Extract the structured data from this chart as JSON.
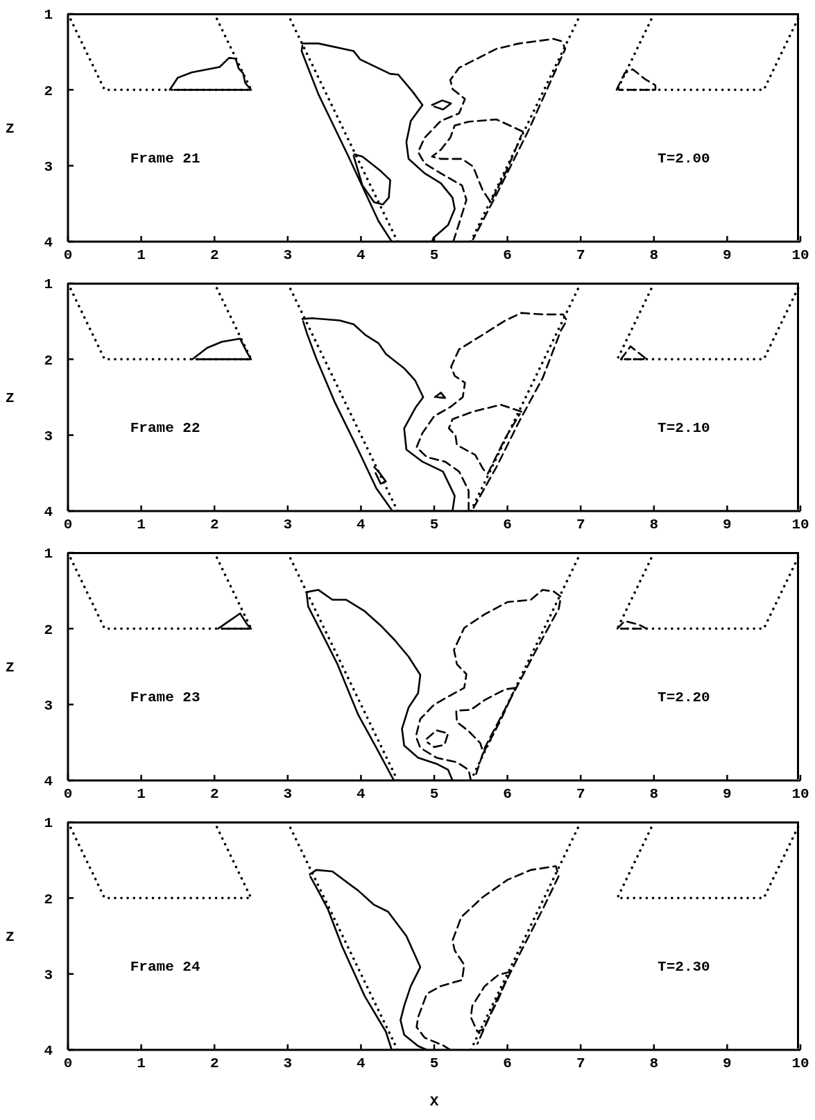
{
  "chart_data": [
    {
      "type": "line",
      "xlim": [
        0,
        10
      ],
      "xticks": [
        0,
        1,
        2,
        3,
        4,
        5,
        6,
        7,
        8,
        9,
        10
      ],
      "ylim": [
        4,
        1
      ],
      "yticks": [
        1,
        2,
        3,
        4
      ],
      "ylabel": "Z",
      "annotations": [
        "Frame 21",
        "T=2.00"
      ],
      "series": [
        {
          "color": "#000000",
          "line_style": "dotted",
          "x": [
            0,
            0.5,
            2.5,
            2
          ],
          "values": [
            1,
            2,
            2,
            1
          ]
        },
        {
          "color": "#000000",
          "line_style": "dotted",
          "x": [
            3,
            4.5
          ],
          "values": [
            1,
            4
          ]
        },
        {
          "color": "#000000",
          "line_style": "dotted",
          "x": [
            7,
            5.5
          ],
          "values": [
            1,
            4
          ]
        },
        {
          "color": "#000000",
          "line_style": "dotted",
          "x": [
            8,
            7.5,
            9.5,
            10
          ],
          "values": [
            1,
            2,
            2,
            1
          ]
        },
        {
          "color": "#000000",
          "line_style": "dashed",
          "x": [
            5.26,
            5.34,
            5.44,
            5.38,
            5.09,
            4.87,
            4.78,
            4.87,
            5.09,
            5.34,
            5.42,
            5.25,
            5.22,
            5.34,
            5.85,
            6.16,
            6.63,
            6.74,
            6.79,
            6.29,
            5.85,
            5.53
          ],
          "values": [
            4,
            3.76,
            3.45,
            3.26,
            3.1,
            2.97,
            2.82,
            2.63,
            2.41,
            2.31,
            2.12,
            1.99,
            1.87,
            1.71,
            1.46,
            1.39,
            1.33,
            1.36,
            1.46,
            2.53,
            3.38,
            3.97
          ]
        },
        {
          "color": "#000000",
          "line_style": "dashed",
          "x": [
            6.21,
            5.85,
            5.47,
            5.28,
            5.22,
            5.09,
            4.97,
            5.09,
            5.38,
            5.53,
            5.66,
            5.77,
            6.0,
            6.19
          ],
          "values": [
            2.55,
            2.39,
            2.42,
            2.47,
            2.63,
            2.79,
            2.88,
            2.91,
            2.91,
            3.01,
            3.32,
            3.48,
            3.04,
            2.6
          ]
        },
        {
          "color": "#000000",
          "line_style": "dashed",
          "x": [
            7.49,
            7.6,
            7.71,
            7.88,
            8.02,
            8.02,
            7.9,
            7.6,
            7.52
          ],
          "values": [
            2,
            1.78,
            1.73,
            1.86,
            1.94,
            2,
            2,
            2,
            2
          ]
        },
        {
          "color": "#000000",
          "line_style": "solid",
          "x": [
            1.39,
            1.5,
            1.69,
            2.07,
            2.2,
            2.29,
            2.33,
            2.39,
            2.42,
            2.5,
            2.3,
            1.8,
            1.45
          ],
          "values": [
            2,
            1.84,
            1.77,
            1.7,
            1.58,
            1.59,
            1.72,
            1.78,
            1.91,
            2,
            2,
            2,
            2
          ]
        },
        {
          "color": "#000000",
          "line_style": "solid",
          "x": [
            3.2,
            3.42,
            3.9,
            3.99,
            4.4,
            4.51,
            4.71,
            4.84,
            4.68,
            4.62,
            4.65,
            4.87,
            5.09,
            5.25,
            5.28,
            5.19,
            4.99,
            4.97,
            4.42,
            4.24,
            3.83,
            3.64,
            3.42,
            3.27,
            3.19,
            3.2
          ],
          "values": [
            1.39,
            1.39,
            1.49,
            1.6,
            1.79,
            1.8,
            2.03,
            2.2,
            2.41,
            2.69,
            2.91,
            3.1,
            3.23,
            3.42,
            3.57,
            3.78,
            3.95,
            4,
            4,
            3.73,
            2.88,
            2.5,
            2.06,
            1.69,
            1.49,
            1.42
          ]
        },
        {
          "color": "#000000",
          "line_style": "solid",
          "x": [
            3.91,
            4.02,
            4.27,
            4.4,
            4.38,
            4.3,
            4.18,
            4.02,
            3.9
          ],
          "values": [
            2.85,
            2.88,
            3.07,
            3.19,
            3.42,
            3.51,
            3.48,
            3.26,
            2.87
          ]
        },
        {
          "color": "#000000",
          "line_style": "solid",
          "x": [
            4.97,
            5.11,
            5.23,
            5.12,
            5.0
          ],
          "values": [
            2.2,
            2.14,
            2.18,
            2.26,
            2.22
          ]
        }
      ]
    },
    {
      "type": "line",
      "xlim": [
        0,
        10
      ],
      "xticks": [
        0,
        1,
        2,
        3,
        4,
        5,
        6,
        7,
        8,
        9,
        10
      ],
      "ylim": [
        4,
        1
      ],
      "yticks": [
        1,
        2,
        3,
        4
      ],
      "ylabel": "Z",
      "annotations": [
        "Frame 22",
        "T=2.10"
      ],
      "series": [
        {
          "color": "#000000",
          "line_style": "dotted",
          "x": [
            0,
            0.5,
            2.5,
            2
          ],
          "values": [
            1,
            2,
            2,
            1
          ]
        },
        {
          "color": "#000000",
          "line_style": "dotted",
          "x": [
            3,
            4.5
          ],
          "values": [
            1,
            4
          ]
        },
        {
          "color": "#000000",
          "line_style": "dotted",
          "x": [
            7,
            5.5
          ],
          "values": [
            1,
            4
          ]
        },
        {
          "color": "#000000",
          "line_style": "dotted",
          "x": [
            8,
            7.5,
            9.5,
            10
          ],
          "values": [
            1,
            2,
            2,
            1
          ]
        },
        {
          "color": "#000000",
          "line_style": "dashed",
          "x": [
            5.47,
            5.47,
            5.34,
            5.15,
            4.9,
            4.76,
            4.84,
            5.0,
            5.22,
            5.39,
            5.42,
            5.28,
            5.23,
            5.34,
            5.66,
            5.97,
            6.19,
            6.48,
            6.76,
            6.81,
            6.73,
            6.48,
            6.16,
            5.85,
            5.53
          ],
          "values": [
            4,
            3.73,
            3.48,
            3.35,
            3.29,
            3.16,
            2.97,
            2.75,
            2.63,
            2.5,
            2.31,
            2.22,
            2.1,
            1.87,
            1.68,
            1.49,
            1.39,
            1.41,
            1.41,
            1.49,
            1.62,
            2.25,
            2.82,
            3.42,
            3.97
          ]
        },
        {
          "color": "#000000",
          "line_style": "dashed",
          "x": [
            6.19,
            5.91,
            5.53,
            5.25,
            5.2,
            5.29,
            5.31,
            5.56,
            5.67,
            5.73,
            5.97,
            6.17
          ],
          "values": [
            2.69,
            2.6,
            2.69,
            2.79,
            2.91,
            3.0,
            3.13,
            3.26,
            3.45,
            3.51,
            3.04,
            2.72
          ]
        },
        {
          "color": "#000000",
          "line_style": "dashed",
          "x": [
            7.55,
            7.68,
            7.9,
            7.6
          ],
          "values": [
            2,
            1.83,
            2,
            2
          ]
        },
        {
          "color": "#000000",
          "line_style": "solid",
          "x": [
            1.7,
            1.9,
            2.1,
            2.35,
            2.45,
            2.5,
            1.75
          ],
          "values": [
            2,
            1.85,
            1.77,
            1.73,
            1.92,
            2,
            2
          ]
        },
        {
          "color": "#000000",
          "line_style": "solid",
          "x": [
            3.2,
            3.33,
            3.71,
            3.9,
            4.06,
            4.24,
            4.34,
            4.59,
            4.74,
            4.85,
            4.75,
            4.59,
            4.62,
            4.84,
            5.12,
            5.28,
            5.25,
            4.43,
            4.21,
            3.96,
            3.64,
            3.39,
            3.27,
            3.21
          ],
          "values": [
            1.47,
            1.46,
            1.49,
            1.54,
            1.68,
            1.79,
            1.93,
            2.12,
            2.28,
            2.5,
            2.63,
            2.91,
            3.19,
            3.35,
            3.48,
            3.8,
            4,
            4,
            3.7,
            3.19,
            2.56,
            1.99,
            1.68,
            1.5
          ]
        },
        {
          "color": "#000000",
          "line_style": "solid",
          "x": [
            4.18,
            4.24,
            4.34,
            4.27,
            4.2
          ],
          "values": [
            3.42,
            3.48,
            3.61,
            3.64,
            3.5
          ]
        },
        {
          "color": "#000000",
          "line_style": "solid",
          "x": [
            5.01,
            5.09,
            5.15,
            5.04
          ],
          "values": [
            2.5,
            2.44,
            2.51,
            2.5
          ]
        }
      ]
    },
    {
      "type": "line",
      "xlim": [
        0,
        10
      ],
      "xticks": [
        0,
        1,
        2,
        3,
        4,
        5,
        6,
        7,
        8,
        9,
        10
      ],
      "ylim": [
        4,
        1
      ],
      "yticks": [
        1,
        2,
        3,
        4
      ],
      "ylabel": "Z",
      "annotations": [
        "Frame 23",
        "T=2.20"
      ],
      "series": [
        {
          "color": "#000000",
          "line_style": "dotted",
          "x": [
            0,
            0.5,
            2.5,
            2
          ],
          "values": [
            1,
            2,
            2,
            1
          ]
        },
        {
          "color": "#000000",
          "line_style": "dotted",
          "x": [
            3,
            4.5
          ],
          "values": [
            1,
            4
          ]
        },
        {
          "color": "#000000",
          "line_style": "dotted",
          "x": [
            7,
            5.5
          ],
          "values": [
            1,
            4
          ]
        },
        {
          "color": "#000000",
          "line_style": "dotted",
          "x": [
            8,
            7.5,
            9.5,
            10
          ],
          "values": [
            1,
            2,
            2,
            1
          ]
        },
        {
          "color": "#000000",
          "line_style": "dashed",
          "x": [
            4.9,
            5.03,
            5.19,
            5.14,
            5.0,
            4.91
          ],
          "values": [
            3.45,
            3.34,
            3.38,
            3.53,
            3.56,
            3.5
          ]
        },
        {
          "color": "#000000",
          "line_style": "dashed",
          "x": [
            5.5,
            5.47,
            5.31,
            5.03,
            4.81,
            4.75,
            4.81,
            5.0,
            5.22,
            5.41,
            5.44,
            5.31,
            5.27,
            5.41,
            5.69,
            6.0,
            6.32,
            6.48,
            6.63,
            6.73,
            6.7,
            6.41,
            6.0,
            5.69,
            5.56
          ],
          "values": [
            4,
            3.86,
            3.76,
            3.7,
            3.57,
            3.42,
            3.19,
            3.0,
            2.88,
            2.78,
            2.6,
            2.47,
            2.28,
            1.99,
            1.81,
            1.65,
            1.62,
            1.49,
            1.51,
            1.58,
            1.74,
            2.25,
            3.0,
            3.57,
            3.95
          ]
        },
        {
          "color": "#000000",
          "line_style": "dashed",
          "x": [
            6.11,
            5.97,
            5.69,
            5.5,
            5.3,
            5.31,
            5.47,
            5.63,
            5.67,
            5.91,
            6.08
          ],
          "values": [
            2.78,
            2.8,
            2.94,
            3.07,
            3.08,
            3.23,
            3.35,
            3.51,
            3.64,
            3.2,
            2.84
          ]
        },
        {
          "color": "#000000",
          "line_style": "dashed",
          "x": [
            7.5,
            7.6,
            7.8,
            7.9,
            7.55
          ],
          "values": [
            2,
            1.9,
            1.95,
            2,
            2
          ]
        },
        {
          "color": "#000000",
          "line_style": "solid",
          "x": [
            2.05,
            2.2,
            2.35,
            2.45,
            2.5,
            2.1
          ],
          "values": [
            2,
            1.9,
            1.8,
            1.95,
            2,
            2
          ]
        },
        {
          "color": "#000000",
          "line_style": "solid",
          "x": [
            3.25,
            3.42,
            3.61,
            3.8,
            4.05,
            4.27,
            4.46,
            4.65,
            4.81,
            4.78,
            4.65,
            4.56,
            4.59,
            4.78,
            5.03,
            5.19,
            5.25,
            4.45,
            4.21,
            3.96,
            3.68,
            3.45,
            3.28,
            3.26
          ],
          "values": [
            1.52,
            1.49,
            1.62,
            1.62,
            1.77,
            1.96,
            2.15,
            2.37,
            2.61,
            2.85,
            3.04,
            3.32,
            3.54,
            3.7,
            3.78,
            3.86,
            4,
            4,
            3.57,
            3.13,
            2.47,
            2.03,
            1.71,
            1.55
          ]
        }
      ]
    },
    {
      "type": "line",
      "xlim": [
        0,
        10
      ],
      "xticks": [
        0,
        1,
        2,
        3,
        4,
        5,
        6,
        7,
        8,
        9,
        10
      ],
      "ylim": [
        4,
        1
      ],
      "yticks": [
        1,
        2,
        3,
        4
      ],
      "ylabel": "Z",
      "xlabel": "X",
      "annotations": [
        "Frame 24",
        "T=2.30"
      ],
      "series": [
        {
          "color": "#000000",
          "line_style": "dotted",
          "x": [
            0,
            0.5,
            2.5,
            2
          ],
          "values": [
            1,
            2,
            2,
            1
          ]
        },
        {
          "color": "#000000",
          "line_style": "dotted",
          "x": [
            3,
            4.5
          ],
          "values": [
            1,
            4
          ]
        },
        {
          "color": "#000000",
          "line_style": "dotted",
          "x": [
            7,
            5.5
          ],
          "values": [
            1,
            4
          ]
        },
        {
          "color": "#000000",
          "line_style": "dotted",
          "x": [
            8,
            7.5,
            9.5,
            10
          ],
          "values": [
            1,
            2,
            2,
            1
          ]
        },
        {
          "color": "#000000",
          "line_style": "dashed",
          "x": [
            5.22,
            5.12,
            4.87,
            4.76,
            4.78,
            4.9,
            5.09,
            5.38,
            5.41,
            5.28,
            5.25,
            5.37,
            5.66,
            6.0,
            6.32,
            6.66,
            6.7,
            6.48,
            6.16,
            5.85,
            5.59
          ],
          "values": [
            4,
            3.94,
            3.84,
            3.7,
            3.57,
            3.26,
            3.16,
            3.08,
            2.88,
            2.69,
            2.56,
            2.25,
            1.99,
            1.76,
            1.63,
            1.58,
            1.71,
            2.15,
            2.75,
            3.35,
            3.92
          ]
        },
        {
          "color": "#000000",
          "line_style": "dashed",
          "x": [
            6.04,
            5.88,
            5.69,
            5.52,
            5.5,
            5.59,
            5.67,
            5.88,
            6.0
          ],
          "values": [
            2.97,
            3.01,
            3.16,
            3.42,
            3.57,
            3.76,
            3.73,
            3.32,
            3.05
          ]
        },
        {
          "color": "#000000",
          "line_style": "solid",
          "x": [
            3.3,
            3.39,
            3.61,
            3.96,
            4.18,
            4.37,
            4.62,
            4.81,
            4.68,
            4.59,
            4.54,
            4.59,
            4.78,
            4.9,
            4.42,
            4.34,
            4.05,
            3.74,
            3.55,
            3.38,
            3.31
          ],
          "values": [
            1.69,
            1.63,
            1.65,
            1.9,
            2.09,
            2.18,
            2.5,
            2.91,
            3.16,
            3.42,
            3.61,
            3.8,
            3.95,
            4,
            4,
            3.76,
            3.29,
            2.63,
            2.15,
            1.84,
            1.72
          ]
        }
      ]
    }
  ]
}
